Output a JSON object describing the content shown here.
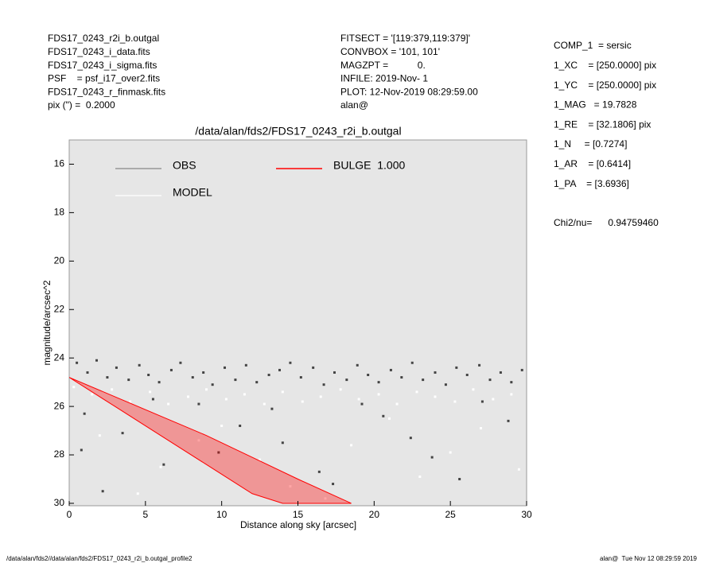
{
  "info_left": [
    "FDS17_0243_r2i_b.outgal",
    "FDS17_0243_i_data.fits",
    "FDS17_0243_i_sigma.fits",
    "PSF    = psf_i17_over2.fits",
    "FDS17_0243_r_finmask.fits",
    "pix (\") =  0.2000"
  ],
  "info_mid": [
    "FITSECT = '[119:379,119:379]'",
    "CONVBOX = '101, 101'",
    "MAGZPT =           0.",
    "INFILE: 2019-Nov- 1",
    "PLOT: 12-Nov-2019 08:29:59.00",
    "alan@"
  ],
  "info_right": [
    "COMP_1  = sersic",
    "1_XC    = [250.0000] pix",
    "1_YC    = [250.0000] pix",
    "1_MAG   = 19.7828",
    "1_RE    = [32.1806] pix",
    "1_N     = [0.7274]",
    "1_AR    = [0.6414]",
    "1_PA    = [3.6936]"
  ],
  "chi2": "Chi2/nu=      0.94759460",
  "footer_left": "/data/alan/fds2//data/alan/fds2/FDS17_0243_r2i_b.outgal_profile2",
  "footer_right": "alan@  Tue Nov 12 08:29:59 2019",
  "chart_data": {
    "type": "scatter",
    "title": "/data/alan/fds2/FDS17_0243_r2i_b.outgal",
    "x_label": "Distance along sky [arcsec]",
    "y_label": "magnitude/arcsec^2",
    "xlim": [
      0,
      30
    ],
    "ylim": [
      15,
      30.1
    ],
    "y_inverted": true,
    "xticks": [
      0,
      5,
      10,
      15,
      20,
      25,
      30
    ],
    "yticks": [
      16,
      18,
      20,
      22,
      24,
      26,
      28,
      30
    ],
    "series": [
      {
        "name": "OBS",
        "color": "#444444",
        "legend_color": "#888888",
        "x": [
          0.5,
          1.2,
          1.8,
          2.5,
          3.1,
          3.9,
          4.6,
          5.2,
          5.9,
          6.7,
          7.3,
          8.1,
          8.8,
          9.4,
          10.2,
          10.9,
          11.6,
          12.3,
          13.1,
          13.8,
          14.5,
          15.2,
          16.0,
          16.7,
          17.4,
          18.2,
          18.9,
          19.6,
          20.3,
          21.1,
          21.8,
          22.5,
          23.2,
          24.0,
          24.7,
          25.4,
          26.1,
          26.9,
          27.6,
          28.3,
          29.0,
          29.7,
          1.0,
          3.5,
          6.2,
          8.5,
          11.2,
          14.0,
          17.3,
          20.6,
          23.8,
          27.1,
          2.2,
          5.5,
          9.8,
          13.3,
          16.4,
          19.2,
          22.4,
          25.6,
          28.8,
          0.8
        ],
        "values": [
          24.2,
          24.6,
          24.1,
          24.8,
          24.4,
          24.9,
          24.3,
          24.7,
          25.0,
          24.5,
          24.2,
          24.8,
          24.6,
          25.1,
          24.4,
          24.9,
          24.3,
          25.0,
          24.7,
          24.5,
          24.2,
          24.8,
          24.4,
          25.1,
          24.6,
          24.9,
          24.3,
          24.7,
          25.0,
          24.5,
          24.8,
          24.2,
          24.9,
          24.6,
          25.1,
          24.4,
          24.7,
          24.3,
          24.9,
          24.6,
          25.0,
          24.5,
          26.3,
          27.1,
          28.4,
          25.9,
          26.8,
          27.5,
          29.2,
          26.4,
          28.1,
          25.8,
          29.5,
          25.7,
          27.9,
          26.1,
          28.7,
          25.9,
          27.3,
          29.0,
          26.6,
          27.8
        ]
      },
      {
        "name": "MODEL",
        "color": "#ffffff",
        "legend_color": "#ffffff",
        "x": [
          0.3,
          1.5,
          2.8,
          4.0,
          5.3,
          6.5,
          7.8,
          9.0,
          10.3,
          11.5,
          12.8,
          14.0,
          15.3,
          16.5,
          17.8,
          19.0,
          20.3,
          21.5,
          22.8,
          24.0,
          25.3,
          26.5,
          27.8,
          29.0,
          2.0,
          6.0,
          10.0,
          14.5,
          18.5,
          23.0,
          27.0,
          4.5,
          8.5,
          12.5,
          16.8,
          21.0,
          25.0,
          29.5
        ],
        "values": [
          25.2,
          25.5,
          25.3,
          25.8,
          25.4,
          25.9,
          25.6,
          25.3,
          25.7,
          25.5,
          25.9,
          25.4,
          25.8,
          25.6,
          25.3,
          25.7,
          25.5,
          25.9,
          25.4,
          25.6,
          25.8,
          25.3,
          25.7,
          25.5,
          27.2,
          28.5,
          26.8,
          29.3,
          27.6,
          28.9,
          26.9,
          29.6,
          27.4,
          28.2,
          29.8,
          26.5,
          27.9,
          28.6
        ]
      },
      {
        "name": "BULGE  1.000",
        "color": "#ff0000",
        "legend_color": "#ff0000",
        "kind": "area",
        "x": [
          0,
          3,
          6,
          9,
          12,
          15,
          18.5,
          14,
          12,
          9,
          6,
          3,
          0
        ],
        "values": [
          24.8,
          25.6,
          26.4,
          27.2,
          28.1,
          29.0,
          30.0,
          30.0,
          29.6,
          28.4,
          27.2,
          26.0,
          24.8
        ]
      }
    ]
  }
}
